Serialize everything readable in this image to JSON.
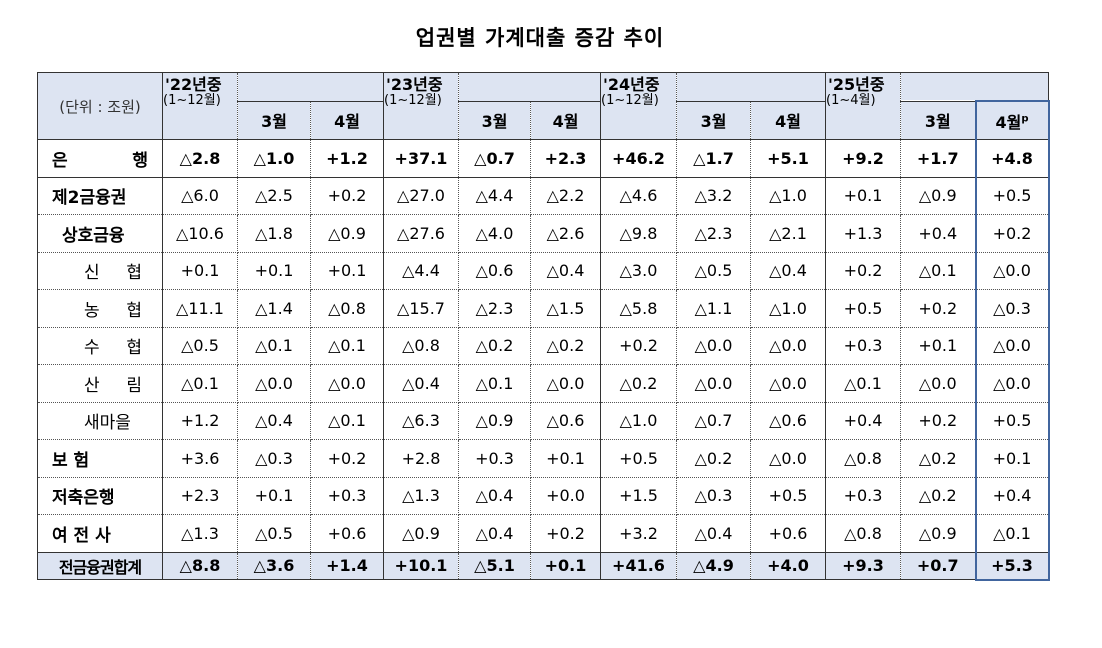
{
  "title": "업권별 가계대출 증감 추이",
  "table": {
    "unit": "(단위 : 조원)",
    "groups": [
      {
        "year": "'22년중",
        "period": "(1~12월)",
        "months": [
          "3월",
          "4월"
        ]
      },
      {
        "year": "'23년중",
        "period": "(1~12월)",
        "months": [
          "3월",
          "4월"
        ]
      },
      {
        "year": "'24년중",
        "period": "(1~12월)",
        "months": [
          "3월",
          "4월"
        ]
      },
      {
        "year": "'25년중",
        "period": "(1~4월)",
        "months": [
          "3월",
          "4월"
        ],
        "mark": "p"
      }
    ],
    "rows": [
      {
        "label": "은 행",
        "values": [
          "△2.8",
          "△1.0",
          "+1.2",
          "+37.1",
          "△0.7",
          "+2.3",
          "+46.2",
          "△1.7",
          "+5.1",
          "+9.2",
          "+1.7",
          "+4.8"
        ]
      },
      {
        "label": "제2금융권",
        "values": [
          "△6.0",
          "△2.5",
          "+0.2",
          "△27.0",
          "△4.4",
          "△2.2",
          "△4.6",
          "△3.2",
          "△1.0",
          "+0.1",
          "△0.9",
          "+0.5"
        ]
      },
      {
        "label": "상호금융",
        "values": [
          "△10.6",
          "△1.8",
          "△0.9",
          "△27.6",
          "△4.0",
          "△2.6",
          "△9.8",
          "△2.3",
          "△2.1",
          "+1.3",
          "+0.4",
          "+0.2"
        ]
      },
      {
        "label": "신 협",
        "values": [
          "+0.1",
          "+0.1",
          "+0.1",
          "△4.4",
          "△0.6",
          "△0.4",
          "△3.0",
          "△0.5",
          "△0.4",
          "+0.2",
          "△0.1",
          "△0.0"
        ]
      },
      {
        "label": "농 협",
        "values": [
          "△11.1",
          "△1.4",
          "△0.8",
          "△15.7",
          "△2.3",
          "△1.5",
          "△5.8",
          "△1.1",
          "△1.0",
          "+0.5",
          "+0.2",
          "△0.3"
        ]
      },
      {
        "label": "수 협",
        "values": [
          "△0.5",
          "△0.1",
          "△0.1",
          "△0.8",
          "△0.2",
          "△0.2",
          "+0.2",
          "△0.0",
          "△0.0",
          "+0.3",
          "+0.1",
          "△0.0"
        ]
      },
      {
        "label": "산 림",
        "values": [
          "△0.1",
          "△0.0",
          "△0.0",
          "△0.4",
          "△0.1",
          "△0.0",
          "△0.2",
          "△0.0",
          "△0.0",
          "△0.1",
          "△0.0",
          "△0.0"
        ]
      },
      {
        "label": "새마을",
        "values": [
          "+1.2",
          "△0.4",
          "△0.1",
          "△6.3",
          "△0.9",
          "△0.6",
          "△1.0",
          "△0.7",
          "△0.6",
          "+0.4",
          "+0.2",
          "+0.5"
        ]
      },
      {
        "label": "보 험",
        "values": [
          "+3.6",
          "△0.3",
          "+0.2",
          "+2.8",
          "+0.3",
          "+0.1",
          "+0.5",
          "△0.2",
          "△0.0",
          "△0.8",
          "△0.2",
          "+0.1"
        ]
      },
      {
        "label": "저축은행",
        "values": [
          "+2.3",
          "+0.1",
          "+0.3",
          "△1.3",
          "△0.4",
          "+0.0",
          "+1.5",
          "△0.3",
          "+0.5",
          "+0.3",
          "△0.2",
          "+0.4"
        ]
      },
      {
        "label": "여 전 사",
        "values": [
          "△1.3",
          "△0.5",
          "+0.6",
          "△0.9",
          "△0.4",
          "+0.2",
          "+3.2",
          "△0.4",
          "+0.6",
          "△0.8",
          "△0.9",
          "△0.1"
        ]
      },
      {
        "label": "전금융권합계",
        "values": [
          "△8.8",
          "△3.6",
          "+1.4",
          "+10.1",
          "△5.1",
          "+0.1",
          "+41.6",
          "△4.9",
          "+4.0",
          "+9.3",
          "+0.7",
          "+5.3"
        ]
      }
    ]
  }
}
